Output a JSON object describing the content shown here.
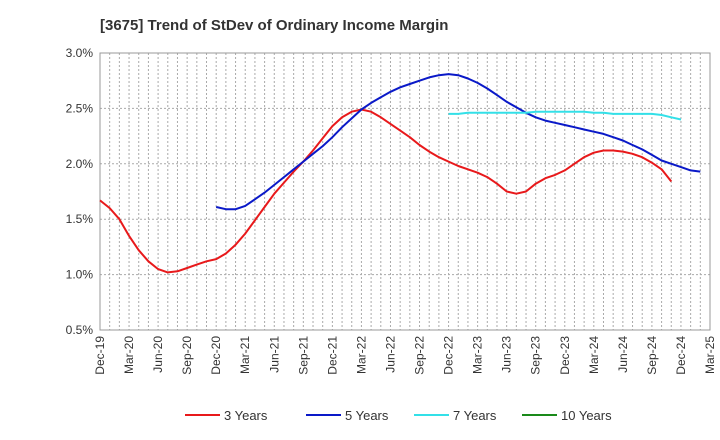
{
  "chart_data": {
    "type": "line",
    "title": "[3675]  Trend of StDev of Ordinary Income Margin",
    "xlabel": "",
    "ylabel": "",
    "ylim": [
      0.5,
      3.0
    ],
    "yticks": [
      0.5,
      1.0,
      1.5,
      2.0,
      2.5,
      3.0
    ],
    "ytick_labels": [
      "0.5%",
      "1.0%",
      "1.5%",
      "2.0%",
      "2.5%",
      "3.0%"
    ],
    "xticks": [
      "Dec-19",
      "Mar-20",
      "Jun-20",
      "Sep-20",
      "Dec-20",
      "Mar-21",
      "Jun-21",
      "Sep-21",
      "Dec-21",
      "Mar-22",
      "Jun-22",
      "Sep-22",
      "Dec-22",
      "Mar-23",
      "Jun-23",
      "Sep-23",
      "Dec-23",
      "Mar-24",
      "Jun-24",
      "Sep-24",
      "Dec-24",
      "Mar-25"
    ],
    "grid": true,
    "legend_position": "bottom",
    "series": [
      {
        "name": "3 Years",
        "color": "#e8191b",
        "start_index": 0,
        "values": [
          1.67,
          1.6,
          1.5,
          1.35,
          1.22,
          1.12,
          1.05,
          1.02,
          1.03,
          1.06,
          1.09,
          1.12,
          1.14,
          1.19,
          1.27,
          1.37,
          1.49,
          1.61,
          1.73,
          1.83,
          1.93,
          2.02,
          2.12,
          2.23,
          2.34,
          2.42,
          2.47,
          2.49,
          2.47,
          2.42,
          2.36,
          2.3,
          2.24,
          2.17,
          2.11,
          2.06,
          2.02,
          1.98,
          1.95,
          1.92,
          1.88,
          1.82,
          1.75,
          1.73,
          1.75,
          1.82,
          1.87,
          1.9,
          1.94,
          2.0,
          2.06,
          2.1,
          2.12,
          2.12,
          2.11,
          2.09,
          2.06,
          2.01,
          1.95,
          1.84
        ]
      },
      {
        "name": "5 Years",
        "color": "#0a19c8",
        "start_index": 12,
        "values": [
          1.61,
          1.59,
          1.59,
          1.62,
          1.68,
          1.74,
          1.81,
          1.88,
          1.95,
          2.02,
          2.09,
          2.16,
          2.24,
          2.33,
          2.41,
          2.49,
          2.55,
          2.6,
          2.65,
          2.69,
          2.72,
          2.75,
          2.78,
          2.8,
          2.81,
          2.8,
          2.77,
          2.73,
          2.68,
          2.62,
          2.56,
          2.51,
          2.46,
          2.42,
          2.39,
          2.37,
          2.35,
          2.33,
          2.31,
          2.29,
          2.27,
          2.24,
          2.21,
          2.17,
          2.13,
          2.08,
          2.03,
          2.0,
          1.97,
          1.94,
          1.93
        ]
      },
      {
        "name": "7 Years",
        "color": "#33e0e8",
        "start_index": 36,
        "values": [
          2.45,
          2.45,
          2.46,
          2.46,
          2.46,
          2.46,
          2.46,
          2.46,
          2.46,
          2.47,
          2.47,
          2.47,
          2.47,
          2.47,
          2.47,
          2.46,
          2.46,
          2.45,
          2.45,
          2.45,
          2.45,
          2.45,
          2.44,
          2.42,
          2.4
        ]
      },
      {
        "name": "10 Years",
        "color": "#1a8a1a",
        "start_index": 0,
        "values": []
      }
    ]
  }
}
